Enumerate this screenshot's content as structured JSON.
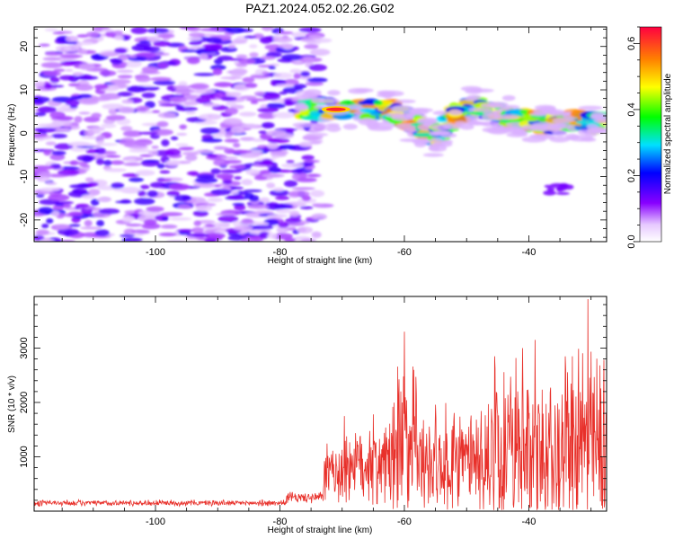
{
  "title": "PAZ1.2024.052.02.26.G02",
  "chart_data": [
    {
      "type": "heatmap",
      "xlabel": "Height of straight line (km)",
      "ylabel": "Frequency (Hz)",
      "xlim": [
        -119.5,
        -27.5
      ],
      "ylim": [
        -25,
        24.5
      ],
      "x_ticks": [
        -100,
        -80,
        -60,
        -40
      ],
      "y_ticks": [
        -20,
        -10,
        0,
        10,
        20
      ],
      "colorbar": {
        "label": "Normalized spectral amplitude",
        "range": [
          0,
          0.65
        ],
        "ticks": [
          0.0,
          0.2,
          0.4,
          0.6
        ]
      },
      "regions": [
        {
          "name": "noise",
          "x_range": [
            -119,
            -73
          ],
          "y_range": [
            -25,
            24.5
          ],
          "level": 0.12
        },
        {
          "name": "signal-band",
          "points": [
            [
              -77,
              5.5
            ],
            [
              -72,
              5.5
            ],
            [
              -66,
              5.5
            ],
            [
              -62,
              5
            ],
            [
              -58,
              2
            ],
            [
              -55,
              -1
            ],
            [
              -52,
              4.5
            ],
            [
              -48,
              6.5
            ],
            [
              -44,
              4
            ],
            [
              -40,
              3
            ],
            [
              -36,
              2
            ],
            [
              -32,
              3
            ],
            [
              -28,
              2
            ]
          ],
          "level": 0.4
        },
        {
          "name": "peak",
          "x": -71,
          "y": 5.5,
          "level": 0.62
        }
      ]
    },
    {
      "type": "line",
      "xlabel": "Height of straight line (km)",
      "ylabel": "SNR (10 * v/v)",
      "xlim": [
        -119.5,
        -27.5
      ],
      "ylim": [
        0,
        3950
      ],
      "x_ticks": [
        -100,
        -80,
        -60,
        -40
      ],
      "y_ticks": [
        1000,
        2000,
        3000
      ],
      "color": "#e8302a",
      "segments": [
        {
          "x_range": [
            -119.5,
            -79
          ],
          "base": 150,
          "amp": 60
        },
        {
          "x_range": [
            -79,
            -73
          ],
          "base": 250,
          "amp": 120
        },
        {
          "x_range": [
            -73,
            -70
          ],
          "base": 700,
          "amp": 600
        },
        {
          "x_range": [
            -70,
            -62
          ],
          "base": 900,
          "amp": 900
        },
        {
          "x_range": [
            -62,
            -58
          ],
          "base": 1200,
          "amp": 1700
        },
        {
          "x_range": [
            -58,
            -46
          ],
          "base": 900,
          "amp": 1100
        },
        {
          "x_range": [
            -46,
            -27.5
          ],
          "base": 1100,
          "amp": 1900
        }
      ],
      "peaks": [
        {
          "x": -60,
          "y": 3300
        },
        {
          "x": -58.5,
          "y": 2600
        },
        {
          "x": -45.5,
          "y": 2850
        },
        {
          "x": -41,
          "y": 3000
        },
        {
          "x": -39,
          "y": 3150
        },
        {
          "x": -33,
          "y": 2850
        },
        {
          "x": -30.5,
          "y": 3900
        }
      ]
    }
  ]
}
